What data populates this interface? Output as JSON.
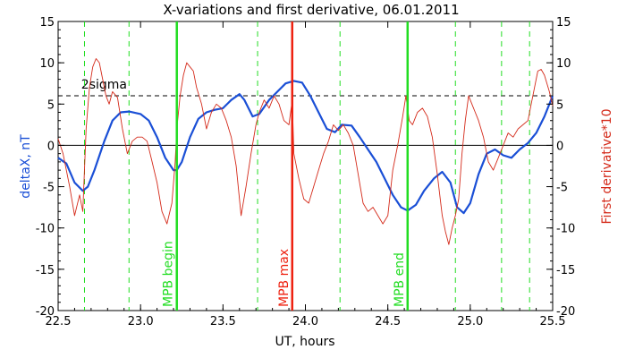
{
  "chart_data": {
    "type": "line",
    "title": "X-variations and first derivative, 06.01.2011",
    "xlabel": "UT, hours",
    "ylabel_left": "deltaX, nT",
    "ylabel_right": "First derivative*10",
    "xlim": [
      22.5,
      25.5
    ],
    "ylim": [
      -20,
      15
    ],
    "x_ticks": [
      "22.5",
      "23.0",
      "23.5",
      "24.0",
      "24.5",
      "25.0",
      "25.5"
    ],
    "x_tick_values": [
      22.5,
      23.0,
      23.5,
      24.0,
      24.5,
      25.0,
      25.5
    ],
    "y_ticks": [
      "15",
      "10",
      "5",
      "0",
      "-5",
      "-10",
      "-15",
      "-20"
    ],
    "y_tick_values": [
      15,
      10,
      5,
      0,
      -5,
      -10,
      -15,
      -20
    ],
    "colors": {
      "deltaX": "#1a4fd6",
      "derivative": "#d42a1a",
      "phase": "#22dd22",
      "max": "#ee2211"
    },
    "series": [
      {
        "key": "deltaX",
        "x": [
          22.5,
          22.55,
          22.6,
          22.65,
          22.68,
          22.72,
          22.78,
          22.83,
          22.88,
          22.93,
          23.0,
          23.05,
          23.1,
          23.15,
          23.2,
          23.22,
          23.25,
          23.3,
          23.35,
          23.4,
          23.45,
          23.5,
          23.55,
          23.6,
          23.63,
          23.68,
          23.72,
          23.78,
          23.83,
          23.88,
          23.93,
          23.98,
          24.03,
          24.08,
          24.13,
          24.18,
          24.22,
          24.28,
          24.33,
          24.38,
          24.43,
          24.48,
          24.53,
          24.58,
          24.62,
          24.67,
          24.72,
          24.78,
          24.83,
          24.88,
          24.92,
          24.96,
          25.0,
          25.05,
          25.1,
          25.15,
          25.2,
          25.25,
          25.3,
          25.35,
          25.4,
          25.45,
          25.5
        ],
        "y": [
          -1.5,
          -2.2,
          -4.5,
          -5.5,
          -5.0,
          -3.0,
          0.5,
          3.0,
          4.0,
          4.1,
          3.8,
          3.0,
          1.0,
          -1.5,
          -3.0,
          -3.0,
          -2.0,
          1.0,
          3.2,
          4.0,
          4.3,
          4.5,
          5.5,
          6.2,
          5.5,
          3.5,
          3.8,
          5.5,
          6.5,
          7.5,
          7.8,
          7.6,
          6.0,
          4.0,
          2.0,
          1.6,
          2.5,
          2.4,
          1.0,
          -0.5,
          -2.0,
          -4.0,
          -6.0,
          -7.5,
          -7.9,
          -7.2,
          -5.5,
          -4.0,
          -3.2,
          -4.5,
          -7.5,
          -8.2,
          -7.0,
          -3.5,
          -1.0,
          -0.5,
          -1.2,
          -1.5,
          -0.5,
          0.3,
          1.5,
          3.5,
          6.0
        ]
      },
      {
        "key": "derivative",
        "x": [
          22.5,
          22.53,
          22.57,
          22.6,
          22.63,
          22.65,
          22.67,
          22.69,
          22.71,
          22.73,
          22.75,
          22.77,
          22.79,
          22.81,
          22.83,
          22.86,
          22.89,
          22.92,
          22.95,
          22.98,
          23.01,
          23.04,
          23.07,
          23.1,
          23.13,
          23.16,
          23.19,
          23.21,
          23.22,
          23.24,
          23.26,
          23.28,
          23.3,
          23.32,
          23.34,
          23.37,
          23.4,
          23.43,
          23.46,
          23.49,
          23.52,
          23.55,
          23.58,
          23.61,
          23.64,
          23.67,
          23.7,
          23.72,
          23.75,
          23.78,
          23.81,
          23.84,
          23.87,
          23.9,
          23.92,
          23.93,
          23.96,
          23.99,
          24.02,
          24.05,
          24.08,
          24.11,
          24.14,
          24.17,
          24.2,
          24.23,
          24.26,
          24.29,
          24.32,
          24.35,
          24.38,
          24.41,
          24.44,
          24.47,
          24.5,
          24.53,
          24.56,
          24.59,
          24.61,
          24.62,
          24.63,
          24.65,
          24.68,
          24.71,
          24.74,
          24.77,
          24.8,
          24.83,
          24.85,
          24.87,
          24.89,
          24.91,
          24.93,
          24.95,
          24.97,
          24.99,
          25.01,
          25.03,
          25.05,
          25.08,
          25.11,
          25.14,
          25.17,
          25.2,
          25.23,
          25.26,
          25.29,
          25.32,
          25.35,
          25.37,
          25.39,
          25.41,
          25.43,
          25.45,
          25.48,
          25.5
        ],
        "y": [
          0.8,
          -1.0,
          -5.0,
          -8.5,
          -6.0,
          -8.0,
          2.0,
          7.0,
          9.5,
          10.5,
          10.0,
          8.0,
          6.0,
          5.0,
          6.5,
          5.8,
          2.0,
          -1.0,
          0.5,
          1.0,
          1.0,
          0.5,
          -2.0,
          -4.5,
          -8.0,
          -9.5,
          -7.0,
          -2.0,
          2.0,
          6.0,
          8.5,
          10.0,
          9.5,
          9.0,
          7.0,
          5.0,
          2.0,
          4.0,
          5.0,
          4.5,
          3.0,
          1.0,
          -2.5,
          -8.5,
          -5.0,
          -1.0,
          2.5,
          4.0,
          5.5,
          4.5,
          6.0,
          5.0,
          3.0,
          2.5,
          5.5,
          -1.0,
          -4.0,
          -6.5,
          -7.0,
          -5.0,
          -3.0,
          -1.0,
          0.5,
          2.5,
          1.8,
          2.5,
          1.5,
          0.0,
          -3.5,
          -7.0,
          -8.0,
          -7.5,
          -8.5,
          -9.5,
          -8.5,
          -3.0,
          0.0,
          3.5,
          6.0,
          4.5,
          3.0,
          2.5,
          4.0,
          4.5,
          3.5,
          1.0,
          -3.5,
          -8.5,
          -10.5,
          -12.0,
          -10.0,
          -8.5,
          -6.5,
          -1.0,
          3.0,
          6.0,
          5.0,
          4.0,
          3.0,
          1.0,
          -2.0,
          -3.0,
          -1.5,
          0.0,
          1.5,
          1.0,
          2.0,
          2.5,
          3.0,
          5.0,
          7.0,
          9.0,
          9.2,
          8.5,
          6.5,
          4.8
        ]
      }
    ],
    "threshold": {
      "label": "2sigma",
      "value": 6
    },
    "dashed_markers_x": [
      22.66,
      22.93,
      23.71,
      24.21,
      24.91,
      25.19,
      25.36
    ],
    "phase_markers": [
      {
        "key": "begin",
        "label": "MPB begin",
        "x": 23.22
      },
      {
        "key": "max",
        "label": "MPB max",
        "x": 23.92
      },
      {
        "key": "end",
        "label": "MPB end",
        "x": 24.62
      }
    ]
  }
}
